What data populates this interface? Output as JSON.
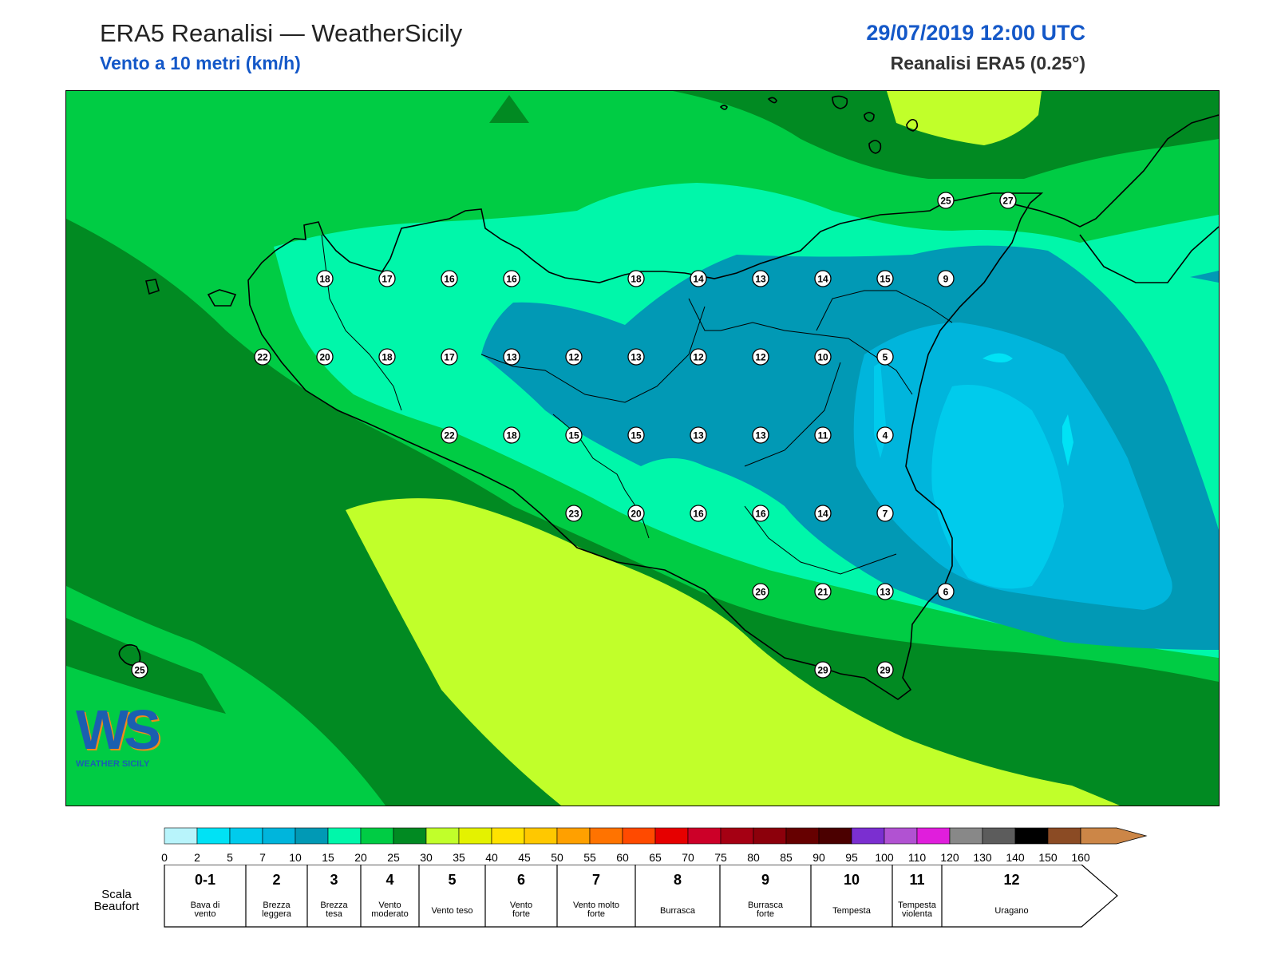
{
  "header": {
    "title": "ERA5 Reanalisi — WeatherSicily",
    "subtitle": "Vento a 10 metri (km/h)",
    "datetime": "29/07/2019 12:00 UTC",
    "model": "Reanalisi ERA5 (0.25°)"
  },
  "logo": {
    "letters": "WS",
    "text": "WEATHER SICILY"
  },
  "stations": [
    {
      "value": "25"
    },
    {
      "value": "27"
    },
    {
      "value": "18"
    },
    {
      "value": "17"
    },
    {
      "value": "16"
    },
    {
      "value": "16"
    },
    {
      "value": "18"
    },
    {
      "value": "14"
    },
    {
      "value": "13"
    },
    {
      "value": "14"
    },
    {
      "value": "15"
    },
    {
      "value": "9"
    },
    {
      "value": "22"
    },
    {
      "value": "20"
    },
    {
      "value": "18"
    },
    {
      "value": "17"
    },
    {
      "value": "13"
    },
    {
      "value": "12"
    },
    {
      "value": "13"
    },
    {
      "value": "12"
    },
    {
      "value": "12"
    },
    {
      "value": "10"
    },
    {
      "value": "5"
    },
    {
      "value": "22"
    },
    {
      "value": "18"
    },
    {
      "value": "15"
    },
    {
      "value": "15"
    },
    {
      "value": "13"
    },
    {
      "value": "13"
    },
    {
      "value": "11"
    },
    {
      "value": "4"
    },
    {
      "value": "23"
    },
    {
      "value": "20"
    },
    {
      "value": "16"
    },
    {
      "value": "16"
    },
    {
      "value": "14"
    },
    {
      "value": "7"
    },
    {
      "value": "26"
    },
    {
      "value": "21"
    },
    {
      "value": "13"
    },
    {
      "value": "6"
    },
    {
      "value": "25"
    },
    {
      "value": "29"
    },
    {
      "value": "29"
    }
  ],
  "colorbar": {
    "ticks": [
      "0",
      "2",
      "5",
      "7",
      "10",
      "15",
      "20",
      "25",
      "30",
      "35",
      "40",
      "45",
      "50",
      "55",
      "60",
      "65",
      "70",
      "75",
      "80",
      "85",
      "90",
      "95",
      "100",
      "110",
      "120",
      "130",
      "140",
      "150",
      "160"
    ],
    "colors": [
      "#b8f4fb",
      "#00e2f5",
      "#00cbec",
      "#00b5dc",
      "#0199b5",
      "#00f7aa",
      "#00cc44",
      "#018a22",
      "#c1ff2a",
      "#e4f200",
      "#ffe200",
      "#ffc800",
      "#ffa000",
      "#ff7300",
      "#ff4a00",
      "#e60000",
      "#cc0028",
      "#a50013",
      "#8c000b",
      "#660000",
      "#4b0000",
      "#7b2fd0",
      "#b152d2",
      "#e01edc",
      "#888888",
      "#5c5c5c",
      "#000000",
      "#8b4b24",
      "#cc8647"
    ]
  },
  "beaufort": {
    "caption_line1": "Scala",
    "caption_line2": "Beaufort",
    "classes": [
      {
        "num": "0-1",
        "line1": "Bava di",
        "line2": "vento"
      },
      {
        "num": "2",
        "line1": "Brezza",
        "line2": "leggera"
      },
      {
        "num": "3",
        "line1": "Brezza",
        "line2": "tesa"
      },
      {
        "num": "4",
        "line1": "Vento",
        "line2": "moderato"
      },
      {
        "num": "5",
        "line1": "Vento teso",
        "line2": ""
      },
      {
        "num": "6",
        "line1": "Vento",
        "line2": "forte"
      },
      {
        "num": "7",
        "line1": "Vento molto",
        "line2": "forte"
      },
      {
        "num": "8",
        "line1": "Burrasca",
        "line2": ""
      },
      {
        "num": "9",
        "line1": "Burrasca",
        "line2": "forte"
      },
      {
        "num": "10",
        "line1": "Tempesta",
        "line2": ""
      },
      {
        "num": "11",
        "line1": "Tempesta",
        "line2": "violenta"
      },
      {
        "num": "12",
        "line1": "Uragano",
        "line2": ""
      }
    ]
  }
}
